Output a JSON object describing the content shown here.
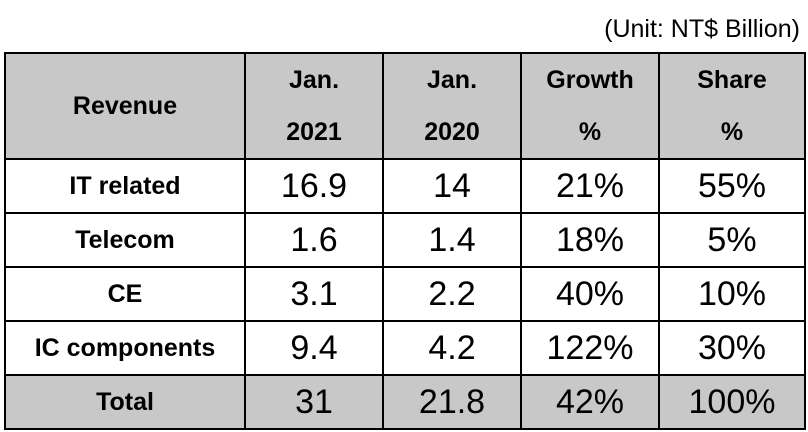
{
  "unit_label": "(Unit: NT$ Billion)",
  "chart_data": {
    "type": "table",
    "columns": [
      {
        "lines": [
          "Revenue"
        ]
      },
      {
        "lines": [
          "Jan.",
          "2021"
        ]
      },
      {
        "lines": [
          "Jan.",
          "2020"
        ]
      },
      {
        "lines": [
          "Growth",
          "%"
        ]
      },
      {
        "lines": [
          "Share",
          "%"
        ]
      }
    ],
    "rows": [
      {
        "label": "IT related",
        "values": [
          "16.9",
          "14",
          "21%",
          "55%"
        ]
      },
      {
        "label": "Telecom",
        "values": [
          "1.6",
          "1.4",
          "18%",
          "5%"
        ]
      },
      {
        "label": "CE",
        "values": [
          "3.1",
          "2.2",
          "40%",
          "10%"
        ]
      },
      {
        "label": "IC components",
        "values": [
          "9.4",
          "4.2",
          "122%",
          "30%"
        ]
      },
      {
        "label": "Total",
        "values": [
          "31",
          "21.8",
          "42%",
          "100%"
        ],
        "highlight": true
      }
    ],
    "header_color": "#c8c8c8",
    "total_row_color": "#c8c8c8"
  }
}
